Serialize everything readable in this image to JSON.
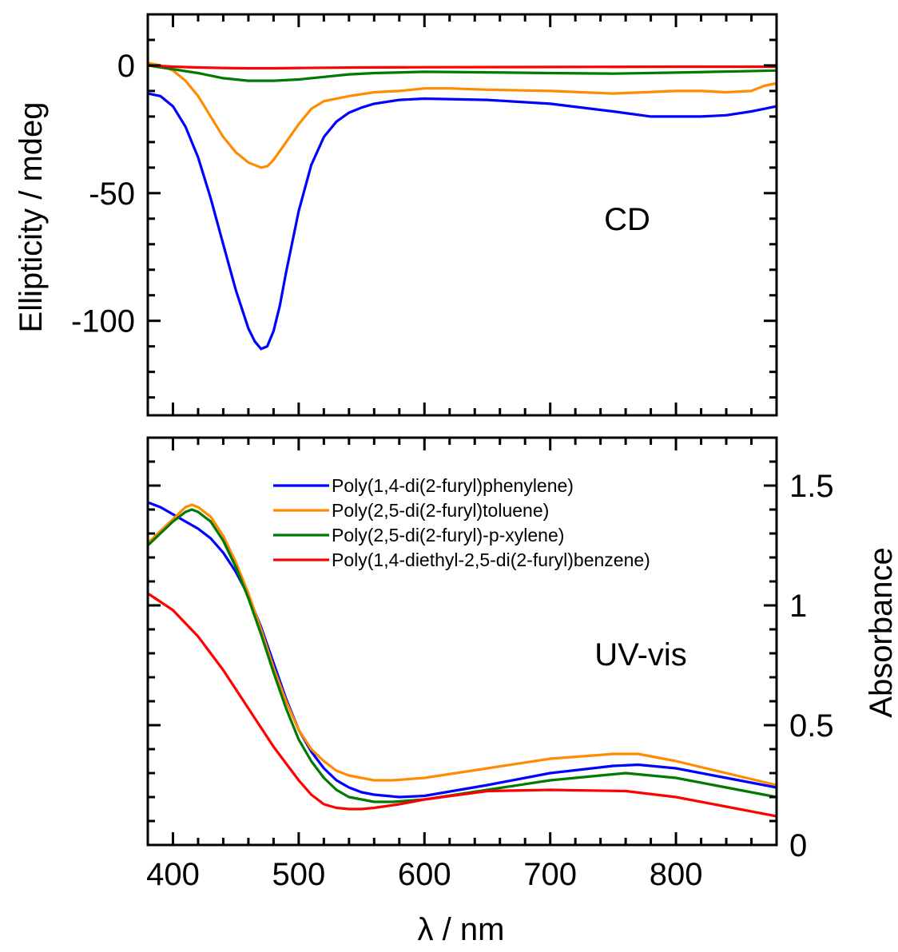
{
  "chart_data": [
    {
      "type": "line",
      "panel": "top",
      "annotation": "CD",
      "xlabel": "λ / nm",
      "ylabel": "Ellipticity / mdeg",
      "xlim": [
        380,
        880
      ],
      "ylim": [
        -137,
        20
      ],
      "yticks": [
        0,
        -50,
        -100
      ],
      "y_axis_side": "left",
      "series": [
        {
          "name": "Poly(1,4-di(2-furyl)phenylene)",
          "color": "#0000ff",
          "x": [
            380,
            390,
            400,
            410,
            420,
            430,
            440,
            450,
            460,
            465,
            470,
            475,
            480,
            485,
            490,
            500,
            510,
            520,
            530,
            540,
            550,
            560,
            580,
            600,
            650,
            700,
            750,
            780,
            800,
            820,
            840,
            860,
            870,
            880
          ],
          "y": [
            -11,
            -12,
            -16,
            -24,
            -36,
            -52,
            -70,
            -88,
            -103,
            -108,
            -111,
            -110,
            -104,
            -94,
            -81,
            -57,
            -39,
            -28,
            -22,
            -18.5,
            -16.5,
            -15,
            -13.5,
            -13,
            -13.5,
            -15,
            -18,
            -20,
            -20,
            -20,
            -19.5,
            -18,
            -17,
            -16
          ]
        },
        {
          "name": "Poly(2,5-di(2-furyl)toluene)",
          "color": "#ff8c00",
          "x": [
            380,
            390,
            400,
            410,
            420,
            430,
            440,
            450,
            460,
            470,
            475,
            480,
            490,
            500,
            510,
            520,
            540,
            560,
            580,
            600,
            620,
            650,
            700,
            750,
            800,
            820,
            840,
            860,
            870,
            880
          ],
          "y": [
            1,
            0,
            -2,
            -6,
            -12,
            -20,
            -28,
            -34,
            -38,
            -40,
            -39.5,
            -37,
            -30,
            -23,
            -17,
            -14,
            -12,
            -10.5,
            -10,
            -9,
            -9,
            -9.5,
            -10,
            -11,
            -10,
            -10,
            -10.5,
            -10,
            -8,
            -7
          ]
        },
        {
          "name": "Poly(2,5-di(2-furyl)-p-xylene)",
          "color": "#007a00",
          "x": [
            380,
            400,
            420,
            440,
            460,
            480,
            500,
            520,
            540,
            560,
            600,
            650,
            700,
            750,
            800,
            850,
            880
          ],
          "y": [
            0,
            -1.5,
            -3,
            -5,
            -6,
            -6,
            -5.5,
            -4.5,
            -3.5,
            -3,
            -2.5,
            -2.7,
            -3,
            -3.2,
            -2.8,
            -2.3,
            -2
          ]
        },
        {
          "name": "Poly(1,4-diethyl-2,5-di(2-furyl)benzene)",
          "color": "#ff0000",
          "x": [
            380,
            400,
            420,
            440,
            460,
            480,
            500,
            550,
            600,
            700,
            800,
            880
          ],
          "y": [
            0,
            -0.5,
            -0.8,
            -1,
            -1.1,
            -1.1,
            -1,
            -0.8,
            -0.7,
            -0.6,
            -0.5,
            -0.5
          ]
        }
      ]
    },
    {
      "type": "line",
      "panel": "bottom",
      "annotation": "UV-vis",
      "xlabel": "λ / nm",
      "ylabel": "Absorbance",
      "xlim": [
        380,
        880
      ],
      "ylim": [
        0,
        1.7
      ],
      "xticks": [
        400,
        500,
        600,
        700,
        800
      ],
      "yticks": [
        0,
        0.5,
        1,
        1.5
      ],
      "y_tick_labels": [
        "0",
        "0.5",
        "1",
        "1.5"
      ],
      "x_tick_labels": [
        "400",
        "500",
        "600",
        "700",
        "800"
      ],
      "y_axis_side": "right",
      "legend": "top-right",
      "series": [
        {
          "name": "Poly(1,4-di(2-furyl)phenylene)",
          "color": "#0000ff",
          "x": [
            380,
            390,
            400,
            410,
            420,
            430,
            440,
            450,
            460,
            470,
            480,
            490,
            500,
            510,
            520,
            530,
            540,
            550,
            560,
            580,
            600,
            650,
            700,
            750,
            770,
            800,
            840,
            880
          ],
          "y": [
            1.43,
            1.41,
            1.38,
            1.35,
            1.32,
            1.28,
            1.22,
            1.14,
            1.04,
            0.91,
            0.76,
            0.61,
            0.48,
            0.39,
            0.32,
            0.27,
            0.24,
            0.22,
            0.21,
            0.2,
            0.205,
            0.25,
            0.3,
            0.33,
            0.335,
            0.32,
            0.28,
            0.24
          ]
        },
        {
          "name": "Poly(2,5-di(2-furyl)toluene)",
          "color": "#ff8c00",
          "x": [
            380,
            390,
            400,
            410,
            415,
            420,
            430,
            440,
            450,
            460,
            470,
            480,
            490,
            500,
            510,
            520,
            530,
            540,
            550,
            560,
            575,
            600,
            650,
            700,
            750,
            770,
            800,
            840,
            880
          ],
          "y": [
            1.26,
            1.31,
            1.36,
            1.41,
            1.42,
            1.41,
            1.37,
            1.29,
            1.18,
            1.05,
            0.9,
            0.74,
            0.6,
            0.48,
            0.4,
            0.35,
            0.31,
            0.29,
            0.28,
            0.27,
            0.27,
            0.28,
            0.32,
            0.36,
            0.38,
            0.38,
            0.35,
            0.3,
            0.25
          ]
        },
        {
          "name": "Poly(2,5-di(2-furyl)-p-xylene)",
          "color": "#007a00",
          "x": [
            380,
            390,
            400,
            410,
            415,
            420,
            430,
            440,
            450,
            460,
            470,
            480,
            490,
            500,
            510,
            520,
            530,
            540,
            550,
            560,
            575,
            600,
            650,
            700,
            760,
            800,
            840,
            880
          ],
          "y": [
            1.25,
            1.3,
            1.35,
            1.39,
            1.4,
            1.39,
            1.35,
            1.27,
            1.16,
            1.03,
            0.88,
            0.72,
            0.57,
            0.44,
            0.35,
            0.28,
            0.23,
            0.2,
            0.19,
            0.18,
            0.18,
            0.19,
            0.23,
            0.27,
            0.3,
            0.28,
            0.24,
            0.2
          ]
        },
        {
          "name": "Poly(1,4-diethyl-2,5-di(2-furyl)benzene)",
          "color": "#ff0000",
          "x": [
            380,
            400,
            420,
            440,
            460,
            480,
            500,
            510,
            520,
            530,
            540,
            550,
            560,
            580,
            600,
            650,
            700,
            760,
            800,
            840,
            880
          ],
          "y": [
            1.05,
            0.98,
            0.87,
            0.73,
            0.57,
            0.41,
            0.27,
            0.21,
            0.17,
            0.155,
            0.15,
            0.15,
            0.155,
            0.17,
            0.19,
            0.225,
            0.23,
            0.225,
            0.2,
            0.16,
            0.12
          ]
        }
      ]
    }
  ]
}
